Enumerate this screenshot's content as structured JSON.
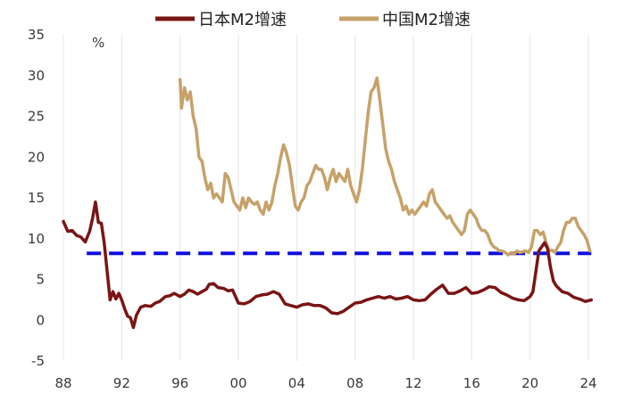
{
  "chart_data": {
    "type": "line",
    "ylabel": "%",
    "ylim": [
      -5,
      35
    ],
    "xlim": [
      1988,
      2024.5
    ],
    "y_ticks": [
      "35",
      "30",
      "25",
      "20",
      "15",
      "10",
      "5",
      "0",
      "-5"
    ],
    "x_ticks": [
      "88",
      "92",
      "96",
      "00",
      "04",
      "08",
      "12",
      "16",
      "20",
      "24"
    ],
    "grid": "vertical",
    "legend_position": "top",
    "reference_line": {
      "y": 8.2,
      "style": "dashed",
      "color": "#1010e0"
    },
    "series": [
      {
        "name": "日本M2增速",
        "color": "#7a1515",
        "points": [
          [
            1988.0,
            12.1
          ],
          [
            1988.3,
            10.9
          ],
          [
            1988.6,
            11.0
          ],
          [
            1988.9,
            10.4
          ],
          [
            1989.2,
            10.2
          ],
          [
            1989.5,
            9.6
          ],
          [
            1989.8,
            10.9
          ],
          [
            1990.0,
            12.5
          ],
          [
            1990.2,
            14.5
          ],
          [
            1990.4,
            12.0
          ],
          [
            1990.6,
            11.9
          ],
          [
            1990.8,
            9.5
          ],
          [
            1991.0,
            6.0
          ],
          [
            1991.2,
            2.5
          ],
          [
            1991.4,
            3.5
          ],
          [
            1991.6,
            2.6
          ],
          [
            1991.8,
            3.3
          ],
          [
            1992.0,
            2.5
          ],
          [
            1992.2,
            1.4
          ],
          [
            1992.4,
            0.5
          ],
          [
            1992.6,
            0.3
          ],
          [
            1992.8,
            -0.9
          ],
          [
            1993.0,
            0.6
          ],
          [
            1993.3,
            1.6
          ],
          [
            1993.6,
            1.8
          ],
          [
            1994.0,
            1.7
          ],
          [
            1994.3,
            2.1
          ],
          [
            1994.6,
            2.3
          ],
          [
            1995.0,
            2.9
          ],
          [
            1995.3,
            3.0
          ],
          [
            1995.6,
            3.3
          ],
          [
            1996.0,
            2.9
          ],
          [
            1996.3,
            3.2
          ],
          [
            1996.6,
            3.7
          ],
          [
            1996.9,
            3.5
          ],
          [
            1997.2,
            3.2
          ],
          [
            1997.5,
            3.5
          ],
          [
            1997.8,
            3.8
          ],
          [
            1998.0,
            4.4
          ],
          [
            1998.3,
            4.5
          ],
          [
            1998.6,
            4.0
          ],
          [
            1999.0,
            3.9
          ],
          [
            1999.3,
            3.6
          ],
          [
            1999.6,
            3.7
          ],
          [
            2000.0,
            2.1
          ],
          [
            2000.4,
            2.0
          ],
          [
            2000.8,
            2.3
          ],
          [
            2001.2,
            2.9
          ],
          [
            2001.6,
            3.1
          ],
          [
            2002.0,
            3.2
          ],
          [
            2002.4,
            3.5
          ],
          [
            2002.8,
            3.2
          ],
          [
            2003.2,
            2.0
          ],
          [
            2003.6,
            1.8
          ],
          [
            2004.0,
            1.6
          ],
          [
            2004.4,
            1.9
          ],
          [
            2004.8,
            2.0
          ],
          [
            2005.2,
            1.8
          ],
          [
            2005.6,
            1.8
          ],
          [
            2006.0,
            1.5
          ],
          [
            2006.4,
            0.9
          ],
          [
            2006.8,
            0.8
          ],
          [
            2007.2,
            1.1
          ],
          [
            2007.6,
            1.6
          ],
          [
            2008.0,
            2.1
          ],
          [
            2008.4,
            2.2
          ],
          [
            2008.8,
            2.5
          ],
          [
            2009.2,
            2.7
          ],
          [
            2009.6,
            2.9
          ],
          [
            2010.0,
            2.7
          ],
          [
            2010.4,
            2.9
          ],
          [
            2010.8,
            2.6
          ],
          [
            2011.2,
            2.7
          ],
          [
            2011.6,
            2.9
          ],
          [
            2012.0,
            2.5
          ],
          [
            2012.4,
            2.4
          ],
          [
            2012.8,
            2.5
          ],
          [
            2013.2,
            3.2
          ],
          [
            2013.6,
            3.8
          ],
          [
            2014.0,
            4.3
          ],
          [
            2014.4,
            3.3
          ],
          [
            2014.8,
            3.3
          ],
          [
            2015.2,
            3.6
          ],
          [
            2015.6,
            4.0
          ],
          [
            2016.0,
            3.3
          ],
          [
            2016.4,
            3.4
          ],
          [
            2016.8,
            3.7
          ],
          [
            2017.2,
            4.1
          ],
          [
            2017.6,
            4.0
          ],
          [
            2018.0,
            3.4
          ],
          [
            2018.4,
            3.1
          ],
          [
            2018.8,
            2.7
          ],
          [
            2019.2,
            2.5
          ],
          [
            2019.6,
            2.4
          ],
          [
            2020.0,
            2.9
          ],
          [
            2020.2,
            3.5
          ],
          [
            2020.4,
            6.0
          ],
          [
            2020.6,
            8.5
          ],
          [
            2020.8,
            9.0
          ],
          [
            2021.0,
            9.5
          ],
          [
            2021.2,
            8.8
          ],
          [
            2021.4,
            6.5
          ],
          [
            2021.6,
            4.8
          ],
          [
            2021.8,
            4.2
          ],
          [
            2022.2,
            3.5
          ],
          [
            2022.6,
            3.3
          ],
          [
            2023.0,
            2.8
          ],
          [
            2023.4,
            2.6
          ],
          [
            2023.8,
            2.3
          ],
          [
            2024.2,
            2.5
          ]
        ]
      },
      {
        "name": "中国M2增速",
        "color": "#c6a26a",
        "points": [
          [
            1996.0,
            29.5
          ],
          [
            1996.1,
            26.0
          ],
          [
            1996.3,
            28.5
          ],
          [
            1996.5,
            27.0
          ],
          [
            1996.7,
            28.0
          ],
          [
            1996.9,
            25.0
          ],
          [
            1997.1,
            23.5
          ],
          [
            1997.3,
            20.0
          ],
          [
            1997.5,
            19.5
          ],
          [
            1997.7,
            17.5
          ],
          [
            1997.9,
            16.0
          ],
          [
            1998.1,
            16.8
          ],
          [
            1998.3,
            15.0
          ],
          [
            1998.5,
            15.5
          ],
          [
            1998.7,
            15.0
          ],
          [
            1998.9,
            14.5
          ],
          [
            1999.1,
            18.0
          ],
          [
            1999.3,
            17.5
          ],
          [
            1999.5,
            16.0
          ],
          [
            1999.7,
            14.5
          ],
          [
            1999.9,
            14.0
          ],
          [
            2000.1,
            13.5
          ],
          [
            2000.3,
            15.0
          ],
          [
            2000.5,
            13.8
          ],
          [
            2000.7,
            15.0
          ],
          [
            2000.9,
            14.5
          ],
          [
            2001.1,
            14.2
          ],
          [
            2001.3,
            14.5
          ],
          [
            2001.5,
            13.5
          ],
          [
            2001.7,
            13.0
          ],
          [
            2001.9,
            14.5
          ],
          [
            2002.1,
            13.5
          ],
          [
            2002.3,
            14.5
          ],
          [
            2002.5,
            16.5
          ],
          [
            2002.7,
            18.0
          ],
          [
            2002.9,
            20.0
          ],
          [
            2003.1,
            21.5
          ],
          [
            2003.3,
            20.5
          ],
          [
            2003.5,
            19.0
          ],
          [
            2003.7,
            16.5
          ],
          [
            2003.9,
            14.0
          ],
          [
            2004.1,
            13.5
          ],
          [
            2004.3,
            14.5
          ],
          [
            2004.5,
            15.0
          ],
          [
            2004.7,
            16.5
          ],
          [
            2004.9,
            17.0
          ],
          [
            2005.1,
            18.0
          ],
          [
            2005.3,
            19.0
          ],
          [
            2005.5,
            18.5
          ],
          [
            2005.7,
            18.5
          ],
          [
            2005.9,
            17.5
          ],
          [
            2006.1,
            16.0
          ],
          [
            2006.3,
            17.5
          ],
          [
            2006.5,
            18.5
          ],
          [
            2006.7,
            17.0
          ],
          [
            2006.9,
            18.0
          ],
          [
            2007.1,
            17.5
          ],
          [
            2007.3,
            17.0
          ],
          [
            2007.5,
            18.5
          ],
          [
            2007.7,
            16.5
          ],
          [
            2007.9,
            15.5
          ],
          [
            2008.1,
            14.5
          ],
          [
            2008.3,
            16.0
          ],
          [
            2008.5,
            18.5
          ],
          [
            2008.7,
            22.0
          ],
          [
            2008.9,
            25.5
          ],
          [
            2009.1,
            28.0
          ],
          [
            2009.3,
            28.5
          ],
          [
            2009.5,
            29.7
          ],
          [
            2009.7,
            27.0
          ],
          [
            2009.9,
            24.0
          ],
          [
            2010.1,
            21.0
          ],
          [
            2010.3,
            19.5
          ],
          [
            2010.5,
            18.5
          ],
          [
            2010.7,
            17.0
          ],
          [
            2010.9,
            16.0
          ],
          [
            2011.1,
            15.0
          ],
          [
            2011.3,
            13.5
          ],
          [
            2011.5,
            14.0
          ],
          [
            2011.7,
            13.0
          ],
          [
            2011.9,
            13.5
          ],
          [
            2012.1,
            13.0
          ],
          [
            2012.3,
            13.5
          ],
          [
            2012.5,
            14.0
          ],
          [
            2012.7,
            14.5
          ],
          [
            2012.9,
            14.0
          ],
          [
            2013.1,
            15.5
          ],
          [
            2013.3,
            16.0
          ],
          [
            2013.5,
            14.5
          ],
          [
            2013.7,
            14.0
          ],
          [
            2013.9,
            13.5
          ],
          [
            2014.1,
            13.0
          ],
          [
            2014.3,
            12.5
          ],
          [
            2014.5,
            12.8
          ],
          [
            2014.7,
            12.0
          ],
          [
            2014.9,
            11.5
          ],
          [
            2015.1,
            11.0
          ],
          [
            2015.3,
            10.5
          ],
          [
            2015.5,
            11.0
          ],
          [
            2015.7,
            13.0
          ],
          [
            2015.9,
            13.5
          ],
          [
            2016.1,
            13.0
          ],
          [
            2016.3,
            12.5
          ],
          [
            2016.5,
            11.5
          ],
          [
            2016.7,
            11.0
          ],
          [
            2016.9,
            11.0
          ],
          [
            2017.1,
            10.5
          ],
          [
            2017.3,
            9.5
          ],
          [
            2017.5,
            9.0
          ],
          [
            2017.7,
            8.8
          ],
          [
            2017.9,
            8.5
          ],
          [
            2018.1,
            8.5
          ],
          [
            2018.3,
            8.3
          ],
          [
            2018.5,
            8.0
          ],
          [
            2018.7,
            8.3
          ],
          [
            2018.9,
            8.1
          ],
          [
            2019.1,
            8.5
          ],
          [
            2019.3,
            8.3
          ],
          [
            2019.5,
            8.4
          ],
          [
            2019.7,
            8.5
          ],
          [
            2019.9,
            8.3
          ],
          [
            2020.1,
            9.0
          ],
          [
            2020.3,
            11.0
          ],
          [
            2020.5,
            11.0
          ],
          [
            2020.7,
            10.5
          ],
          [
            2020.9,
            10.8
          ],
          [
            2021.1,
            9.5
          ],
          [
            2021.3,
            8.5
          ],
          [
            2021.5,
            8.6
          ],
          [
            2021.7,
            8.3
          ],
          [
            2021.9,
            9.0
          ],
          [
            2022.1,
            9.5
          ],
          [
            2022.3,
            11.0
          ],
          [
            2022.5,
            12.0
          ],
          [
            2022.7,
            12.0
          ],
          [
            2022.9,
            12.5
          ],
          [
            2023.1,
            12.5
          ],
          [
            2023.3,
            11.5
          ],
          [
            2023.5,
            11.0
          ],
          [
            2023.7,
            10.5
          ],
          [
            2023.9,
            9.8
          ],
          [
            2024.1,
            8.5
          ]
        ]
      }
    ]
  }
}
